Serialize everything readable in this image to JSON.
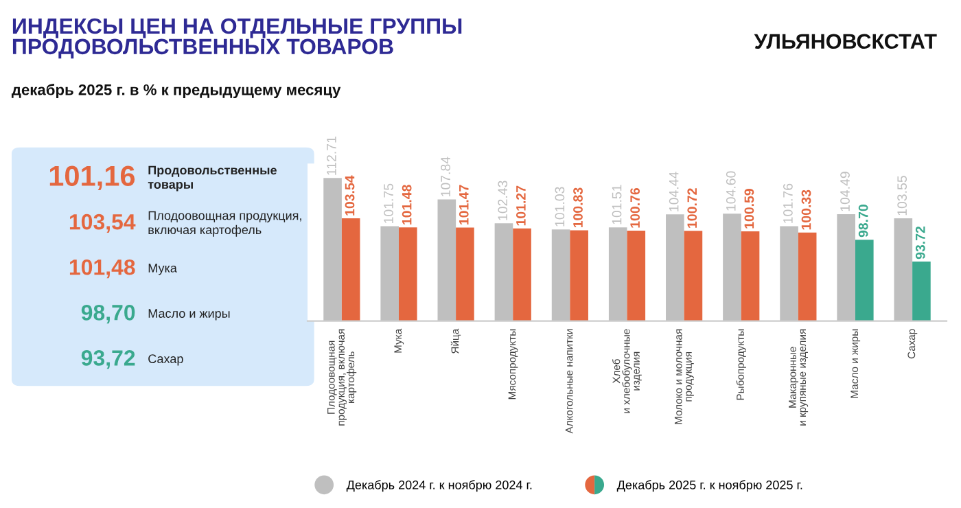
{
  "chart_data": [
    {
      "type": "other",
      "title": "ИНДЕКСЫ ЦЕН НА ОТДЕЛЬНЫЕ ГРУППЫ\nПРОДОВОЛЬСТВЕННЫХ ТОВАРОВ",
      "subtitle": "декабрь 2025 г. в % к предыдущему месяцу",
      "annotations": [
        "УЛЬЯНОВСКСТАТ"
      ],
      "categories": [
        "Продовольственные\nтовары",
        "Плодоовощная продукция,\nвключая картофель",
        "Мука",
        "Масло и жиры",
        "Сахар"
      ],
      "value_labels": [
        "101,16",
        "103,54",
        "101,48",
        "98,70",
        "93,72"
      ],
      "colors": [
        "#e4673f",
        "#e4673f",
        "#e4673f",
        "#3aa98e",
        "#3aa98e"
      ]
    },
    {
      "type": "bar",
      "categories": [
        "Плодоовощная\nпродукция, включая\nкартофель",
        "Мука",
        "Яйца",
        "Мясопродукты",
        "Алкогольные напитки",
        "Хлеб\nи хлебобулочные\nизделия",
        "Молоко и молочная\nпродукция",
        "Рыбопродукты",
        "Макаронные\nи крупяные изделия",
        "Масло и жиры",
        "Сахар"
      ],
      "series": [
        {
          "name": "Декабрь 2024 г. к ноябрю 2024 г.",
          "color": "#bfbfbf",
          "values": [
            112.71,
            101.75,
            107.84,
            102.43,
            101.03,
            101.51,
            104.44,
            104.6,
            101.76,
            104.49,
            103.55
          ],
          "value_labels": [
            "112.71",
            "101.75",
            "107.84",
            "102.43",
            "101.03",
            "101.51",
            "104.44",
            "104.60",
            "101.76",
            "104.49",
            "103.55"
          ]
        },
        {
          "name": "Декабрь 2025 г. к ноябрю 2025 г.",
          "colors": [
            "#e4673f",
            "#e4673f",
            "#e4673f",
            "#e4673f",
            "#e4673f",
            "#e4673f",
            "#e4673f",
            "#e4673f",
            "#e4673f",
            "#3aa98e",
            "#3aa98e"
          ],
          "values": [
            103.54,
            101.48,
            101.47,
            101.27,
            100.83,
            100.76,
            100.72,
            100.59,
            100.33,
            98.7,
            93.72
          ],
          "value_labels": [
            "103.54",
            "101.48",
            "101.47",
            "101.27",
            "100.83",
            "100.76",
            "100.72",
            "100.59",
            "100.33",
            "98.70",
            "93.72"
          ]
        }
      ],
      "ylim": [
        80.2,
        116
      ],
      "legend": "bottom",
      "grid": false,
      "tick_labels": "x"
    }
  ]
}
